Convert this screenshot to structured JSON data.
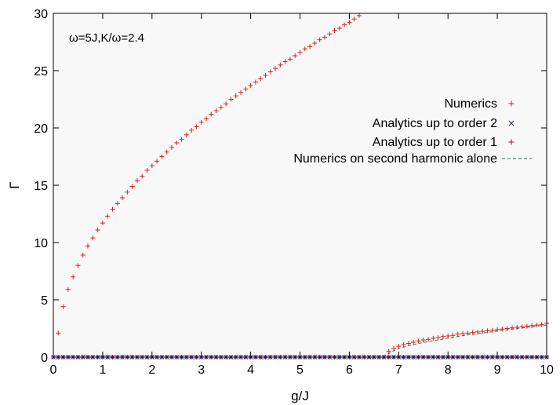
{
  "chart_data": {
    "type": "scatter",
    "title": "",
    "annotation": "ω=5J,K/ω=2.4",
    "xlabel": "g/J",
    "ylabel": "Γ",
    "xlim": [
      0,
      10
    ],
    "ylim": [
      0,
      30
    ],
    "x_ticks": [
      "0",
      "1",
      "2",
      "3",
      "4",
      "5",
      "6",
      "7",
      "8",
      "9",
      "10"
    ],
    "y_ticks": [
      "0",
      "5",
      "10",
      "15",
      "20",
      "25",
      "30"
    ],
    "grid": false,
    "legend_position": "right",
    "colors": {
      "plot_background": "#f8f8f8",
      "numerics": "#e41a1c",
      "analytics_order2": "#1f1f8f",
      "analytics_order1": "#8b1a1a",
      "second_harmonic": "#2f6f4f"
    },
    "series": [
      {
        "name": "Numerics",
        "marker": "plus",
        "color": "#e41a1c",
        "curves": [
          {
            "x": [
              0,
              0.1,
              0.2,
              0.3,
              0.4,
              0.5,
              0.6,
              0.7,
              0.8,
              0.9,
              1.0,
              1.1,
              1.2,
              1.3,
              1.4,
              1.5,
              1.6,
              1.7,
              1.8,
              1.9,
              2.0,
              2.1,
              2.2,
              2.3,
              2.4,
              2.5,
              2.6,
              2.7,
              2.8,
              2.9,
              3.0,
              3.1,
              3.2,
              3.3,
              3.4,
              3.5,
              3.6,
              3.7,
              3.8,
              3.9,
              4.0,
              4.1,
              4.2,
              4.3,
              4.4,
              4.5,
              4.6,
              4.7,
              4.8,
              4.9,
              5.0,
              5.1,
              5.2,
              5.3,
              5.4,
              5.5,
              5.6,
              5.7,
              5.8,
              5.9,
              6.0,
              6.1,
              6.2
            ],
            "y": [
              0,
              2.1,
              4.4,
              5.9,
              7.0,
              8.0,
              8.9,
              9.7,
              10.4,
              11.1,
              11.7,
              12.3,
              12.9,
              13.4,
              13.9,
              14.4,
              14.9,
              15.4,
              15.8,
              16.3,
              16.7,
              17.1,
              17.5,
              17.9,
              18.3,
              18.7,
              19.0,
              19.4,
              19.8,
              20.1,
              20.5,
              20.8,
              21.2,
              21.5,
              21.8,
              22.1,
              22.5,
              22.8,
              23.1,
              23.4,
              23.7,
              24.0,
              24.3,
              24.6,
              24.9,
              25.2,
              25.5,
              25.8,
              26.0,
              26.3,
              26.6,
              26.9,
              27.1,
              27.4,
              27.7,
              27.9,
              28.2,
              28.5,
              28.7,
              29.0,
              29.2,
              29.5,
              29.8
            ]
          },
          {
            "x": [
              6.7,
              6.8,
              6.9,
              7.0,
              7.1,
              7.2,
              7.3,
              7.4,
              7.5,
              7.6,
              7.7,
              7.8,
              7.9,
              8.0,
              8.1,
              8.2,
              8.3,
              8.4,
              8.5,
              8.6,
              8.7,
              8.8,
              8.9,
              9.0,
              9.1,
              9.2,
              9.3,
              9.4,
              9.5,
              9.6,
              9.7,
              9.8,
              9.9,
              10.0
            ],
            "y": [
              0.0,
              0.5,
              0.75,
              0.95,
              1.1,
              1.2,
              1.3,
              1.4,
              1.5,
              1.55,
              1.65,
              1.7,
              1.8,
              1.85,
              1.9,
              2.0,
              2.05,
              2.1,
              2.15,
              2.2,
              2.25,
              2.3,
              2.35,
              2.4,
              2.45,
              2.5,
              2.55,
              2.6,
              2.65,
              2.7,
              2.75,
              2.8,
              2.85,
              2.95
            ]
          }
        ]
      },
      {
        "name": "Analytics up to order 2",
        "marker": "cross",
        "color": "#1f1f8f",
        "curves": [
          {
            "x": [
              0,
              0.1,
              0.2,
              0.3,
              0.4,
              0.5,
              0.6,
              0.7,
              0.8,
              0.9,
              1.0,
              1.1,
              1.2,
              1.3,
              1.4,
              1.5,
              1.6,
              1.7,
              1.8,
              1.9,
              2.0,
              2.1,
              2.2,
              2.3,
              2.4,
              2.5,
              2.6,
              2.7,
              2.8,
              2.9,
              3.0,
              3.1,
              3.2,
              3.3,
              3.4,
              3.5,
              3.6,
              3.7,
              3.8,
              3.9,
              4.0,
              4.1,
              4.2,
              4.3,
              4.4,
              4.5,
              4.6,
              4.7,
              4.8,
              4.9,
              5.0,
              5.1,
              5.2,
              5.3,
              5.4,
              5.5,
              5.6,
              5.7,
              5.8,
              5.9,
              6.0,
              6.1,
              6.2,
              6.3,
              6.4,
              6.5,
              6.6,
              6.7,
              6.8,
              6.9,
              7.0,
              7.1,
              7.2,
              7.3,
              7.4,
              7.5,
              7.6,
              7.7,
              7.8,
              7.9,
              8.0,
              8.1,
              8.2,
              8.3,
              8.4,
              8.5,
              8.6,
              8.7,
              8.8,
              8.9,
              9.0,
              9.1,
              9.2,
              9.3,
              9.4,
              9.5,
              9.6,
              9.7,
              9.8,
              9.9,
              10.0
            ],
            "y": [
              0,
              0,
              0,
              0,
              0,
              0,
              0,
              0,
              0,
              0,
              0,
              0,
              0,
              0,
              0,
              0,
              0,
              0,
              0,
              0,
              0,
              0,
              0,
              0,
              0,
              0,
              0,
              0,
              0,
              0,
              0,
              0,
              0,
              0,
              0,
              0,
              0,
              0,
              0,
              0,
              0,
              0,
              0,
              0,
              0,
              0,
              0,
              0,
              0,
              0,
              0,
              0,
              0,
              0,
              0,
              0,
              0,
              0,
              0,
              0,
              0,
              0,
              0,
              0,
              0,
              0,
              0,
              0,
              0,
              0,
              0,
              0,
              0,
              0,
              0,
              0,
              0,
              0,
              0,
              0,
              0,
              0,
              0,
              0,
              0,
              0,
              0,
              0,
              0,
              0,
              0,
              0,
              0,
              0,
              0,
              0,
              0,
              0,
              0,
              0,
              0
            ]
          }
        ]
      },
      {
        "name": "Analytics up to order 1",
        "marker": "plus",
        "color": "#8b1a1a",
        "curves": [
          {
            "x": [
              0,
              0.1,
              0.2,
              0.3,
              0.4,
              0.5,
              0.6,
              0.7,
              0.8,
              0.9,
              1.0,
              1.1,
              1.2,
              1.3,
              1.4,
              1.5,
              1.6,
              1.7,
              1.8,
              1.9,
              2.0,
              2.1,
              2.2,
              2.3,
              2.4,
              2.5,
              2.6,
              2.7,
              2.8,
              2.9,
              3.0,
              3.1,
              3.2,
              3.3,
              3.4,
              3.5,
              3.6,
              3.7,
              3.8,
              3.9,
              4.0,
              4.1,
              4.2,
              4.3,
              4.4,
              4.5,
              4.6,
              4.7,
              4.8,
              4.9,
              5.0,
              5.1,
              5.2,
              5.3,
              5.4,
              5.5,
              5.6,
              5.7,
              5.8,
              5.9,
              6.0,
              6.1,
              6.2,
              6.3,
              6.4,
              6.5,
              6.6,
              6.7,
              6.8,
              6.9,
              7.0,
              7.1,
              7.2,
              7.3,
              7.4,
              7.5,
              7.6,
              7.7,
              7.8,
              7.9,
              8.0,
              8.1,
              8.2,
              8.3,
              8.4,
              8.5,
              8.6,
              8.7,
              8.8,
              8.9,
              9.0,
              9.1,
              9.2,
              9.3,
              9.4,
              9.5,
              9.6,
              9.7,
              9.8,
              9.9,
              10.0
            ],
            "y": [
              0,
              0,
              0,
              0,
              0,
              0,
              0,
              0,
              0,
              0,
              0,
              0,
              0,
              0,
              0,
              0,
              0,
              0,
              0,
              0,
              0,
              0,
              0,
              0,
              0,
              0,
              0,
              0,
              0,
              0,
              0,
              0,
              0,
              0,
              0,
              0,
              0,
              0,
              0,
              0,
              0,
              0,
              0,
              0,
              0,
              0,
              0,
              0,
              0,
              0,
              0,
              0,
              0,
              0,
              0,
              0,
              0,
              0,
              0,
              0,
              0,
              0,
              0,
              0,
              0,
              0,
              0,
              0,
              0,
              0,
              0,
              0,
              0,
              0,
              0,
              0,
              0,
              0,
              0,
              0,
              0,
              0,
              0,
              0,
              0,
              0,
              0,
              0,
              0,
              0,
              0,
              0,
              0,
              0,
              0,
              0,
              0,
              0,
              0,
              0,
              0
            ]
          }
        ]
      },
      {
        "name": "Numerics on second harmonic alone",
        "marker": "dashed-line",
        "color": "#2f6f4f",
        "curves": [
          {
            "x": [
              0,
              6.6,
              6.7,
              6.8,
              6.9,
              7.0,
              7.2,
              7.4,
              7.6,
              7.8,
              8.0,
              8.2,
              8.4,
              8.6,
              8.8,
              9.0,
              9.2,
              9.4,
              9.6,
              9.8,
              10.0
            ],
            "y": [
              0,
              0,
              0.1,
              0.3,
              0.55,
              0.75,
              1.0,
              1.2,
              1.35,
              1.5,
              1.65,
              1.8,
              1.95,
              2.05,
              2.15,
              2.3,
              2.4,
              2.5,
              2.6,
              2.7,
              2.8
            ]
          }
        ]
      }
    ]
  }
}
